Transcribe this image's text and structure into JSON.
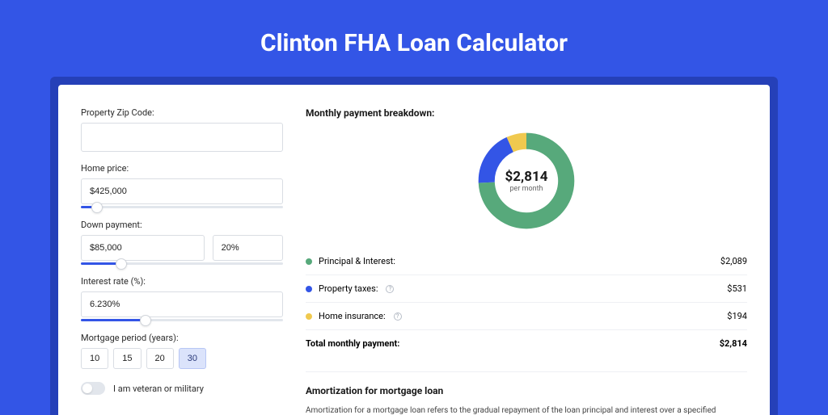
{
  "header": {
    "title": "Clinton FHA Loan Calculator"
  },
  "form": {
    "zip": {
      "label": "Property Zip Code:",
      "value": ""
    },
    "homePrice": {
      "label": "Home price:",
      "value": "$425,000",
      "sliderPct": 8
    },
    "downPayment": {
      "label": "Down payment:",
      "amount": "$85,000",
      "pct": "20%",
      "sliderPct": 20
    },
    "interest": {
      "label": "Interest rate (%):",
      "value": "6.230%",
      "sliderPct": 32
    },
    "period": {
      "label": "Mortgage period (years):",
      "options": [
        "10",
        "15",
        "20",
        "30"
      ],
      "activeIndex": 3
    },
    "veteran": {
      "label": "I am veteran or military",
      "checked": false
    }
  },
  "breakdown": {
    "title": "Monthly payment breakdown:",
    "donut": {
      "amount": "$2,814",
      "sub": "per month",
      "slices": [
        {
          "color": "#57a97b",
          "pct": 74.2
        },
        {
          "color": "#3355e6",
          "pct": 18.9
        },
        {
          "color": "#f0c94f",
          "pct": 6.9
        }
      ]
    },
    "items": [
      {
        "color": "#57a97b",
        "label": "Principal & Interest:",
        "value": "$2,089",
        "info": false
      },
      {
        "color": "#3355e6",
        "label": "Property taxes:",
        "value": "$531",
        "info": true
      },
      {
        "color": "#f0c94f",
        "label": "Home insurance:",
        "value": "$194",
        "info": true
      }
    ],
    "total": {
      "label": "Total monthly payment:",
      "value": "$2,814"
    }
  },
  "amort": {
    "title": "Amortization for mortgage loan",
    "text": "Amortization for a mortgage loan refers to the gradual repayment of the loan principal and interest over a specified"
  }
}
